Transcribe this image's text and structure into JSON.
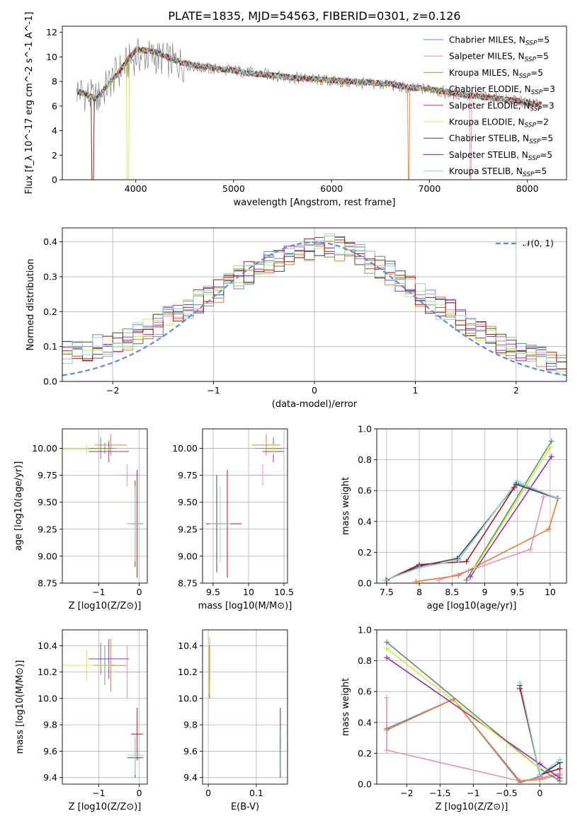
{
  "colors": {
    "chabrier_miles": "#5b8fd6",
    "salpeter_miles": "#e98cc0",
    "kroupa_miles": "#ee7c2c",
    "chabrier_elodie": "#5e8f6a",
    "salpeter_elodie": "#9a2fb8",
    "kroupa_elodie": "#ccef3f",
    "chabrier_stelib": "#444444",
    "salpeter_stelib": "#b01818",
    "kroupa_stelib": "#8fd6dc",
    "data": "#808080",
    "normal": "#5b8fd6"
  },
  "legend": [
    {
      "key": "chabrier_miles",
      "pre": "Chabrier MILES, N",
      "sub": "SSP",
      "post": "=5"
    },
    {
      "key": "salpeter_miles",
      "pre": "Salpeter MILES, N",
      "sub": "SSP",
      "post": "=5"
    },
    {
      "key": "kroupa_miles",
      "pre": "Kroupa MILES, N",
      "sub": "SSP",
      "post": "=5"
    },
    {
      "key": "chabrier_elodie",
      "pre": "Chabrier ELODIE, N",
      "sub": "SSP",
      "post": "=3"
    },
    {
      "key": "salpeter_elodie",
      "pre": "Salpeter ELODIE, N",
      "sub": "SSP",
      "post": "=3"
    },
    {
      "key": "kroupa_elodie",
      "pre": "Kroupa ELODIE, N",
      "sub": "SSP",
      "post": "=2"
    },
    {
      "key": "chabrier_stelib",
      "pre": "Chabrier STELIB, N",
      "sub": "SSP",
      "post": "=5"
    },
    {
      "key": "salpeter_stelib",
      "pre": "Salpeter STELIB, N",
      "sub": "SSP",
      "post": "=5"
    },
    {
      "key": "kroupa_stelib",
      "pre": "Kroupa STELIB, N",
      "sub": "SSP",
      "post": "=5"
    }
  ],
  "chart_data": [
    {
      "id": "spectrum",
      "type": "line",
      "title": "PLATE=1835, MJD=54563, FIBERID=0301, z=0.126",
      "xlabel": "wavelength [Angstrom, rest frame]",
      "ylabel": "Flux [f_λ 10^-17 erg cm^-2 s^-1 A^-1]",
      "xlim": [
        3250,
        8400
      ],
      "ylim": [
        0,
        12.5
      ],
      "xticks": [
        4000,
        5000,
        6000,
        7000,
        8000
      ],
      "yticks": [
        0,
        2,
        4,
        6,
        8,
        10,
        12
      ],
      "data_x": [
        3400,
        3600,
        3800,
        4000,
        4200,
        4400,
        4600,
        4800,
        5000,
        5200,
        5400,
        5600,
        5800,
        6000,
        6200,
        6400,
        6600,
        6800,
        7000,
        7200,
        7400,
        7600,
        7800,
        8000,
        8150
      ],
      "data_y": [
        7.3,
        6.5,
        8.6,
        10.1,
        10.0,
        9.6,
        9.2,
        9.0,
        8.9,
        8.7,
        8.5,
        8.3,
        8.2,
        8.0,
        7.9,
        7.8,
        7.7,
        7.4,
        7.4,
        7.0,
        6.9,
        6.7,
        6.5,
        6.3,
        6.0
      ],
      "model_y": [
        7.2,
        6.6,
        8.5,
        10.6,
        10.4,
        9.7,
        9.3,
        9.1,
        8.9,
        8.6,
        8.5,
        8.3,
        8.2,
        8.1,
        8.0,
        7.9,
        7.8,
        7.5,
        7.4,
        7.1,
        6.9,
        6.7,
        6.5,
        6.3,
        6.1
      ],
      "legend_position": "upper-right"
    },
    {
      "id": "residuals",
      "type": "line",
      "xlabel": "(data-model)/error",
      "ylabel": "Normed distribution",
      "xlim": [
        -2.5,
        2.5
      ],
      "ylim": [
        0,
        0.44
      ],
      "xticks": [
        -2,
        -1,
        0,
        1,
        2
      ],
      "yticks": [
        0.0,
        0.1,
        0.2,
        0.3,
        0.4
      ],
      "grid": true,
      "bin_width": 0.1,
      "hist_reference": [
        0.04,
        0.05,
        0.06,
        0.07,
        0.08,
        0.08,
        0.09,
        0.09,
        0.1,
        0.1,
        0.11,
        0.12,
        0.14,
        0.15,
        0.16,
        0.18,
        0.2,
        0.21,
        0.23,
        0.25,
        0.26,
        0.28,
        0.3,
        0.31,
        0.33,
        0.34,
        0.35,
        0.36,
        0.37,
        0.38,
        0.39,
        0.39,
        0.38,
        0.37,
        0.36,
        0.34,
        0.33,
        0.31,
        0.29,
        0.27,
        0.25,
        0.23,
        0.21,
        0.2,
        0.18,
        0.16,
        0.14,
        0.13,
        0.11,
        0.1,
        0.09,
        0.08,
        0.07,
        0.06,
        0.05,
        0.05,
        0.04,
        0.04,
        0.03,
        0.03
      ],
      "normal_label": "𝒩(0, 1)",
      "legend_position": "upper-right"
    },
    {
      "id": "age_vs_Z",
      "type": "scatter",
      "xlabel": "Z [log10(Z/Z⊙)]",
      "ylabel": "age [log10(age/yr)]",
      "xlim": [
        -1.9,
        0.2
      ],
      "ylim": [
        8.75,
        10.18
      ],
      "xticks": [
        -1,
        0
      ],
      "yticks": [
        8.75,
        9.0,
        9.25,
        9.5,
        9.75,
        10.0
      ],
      "grid": true,
      "points": [
        {
          "key": "chabrier_miles",
          "x": -0.85,
          "xerr": 0.3,
          "y": 10.0,
          "yerr": 0.05
        },
        {
          "key": "salpeter_miles",
          "x": -0.3,
          "xerr": 0.3,
          "y": 9.75,
          "yerr": 0.1
        },
        {
          "key": "kroupa_miles",
          "x": -0.7,
          "xerr": 0.4,
          "y": 10.03,
          "yerr": 0.1
        },
        {
          "key": "chabrier_elodie",
          "x": -0.95,
          "xerr": 0.3,
          "y": 10.0,
          "yerr": 0.1
        },
        {
          "key": "salpeter_elodie",
          "x": -0.75,
          "xerr": 0.5,
          "y": 9.97,
          "yerr": 0.1
        },
        {
          "key": "kroupa_elodie",
          "x": -1.3,
          "xerr": 0.6,
          "y": 9.99,
          "yerr": 0.05
        },
        {
          "key": "chabrier_stelib",
          "x": -0.1,
          "xerr": 0.2,
          "y": 9.3,
          "yerr": 0.4
        },
        {
          "key": "salpeter_stelib",
          "x": -0.05,
          "xerr": 0.15,
          "y": 9.3,
          "yerr": 0.5
        },
        {
          "key": "kroupa_stelib",
          "x": -0.1,
          "xerr": 0.2,
          "y": 9.3,
          "yerr": 0.35
        }
      ]
    },
    {
      "id": "age_vs_mass",
      "type": "scatter",
      "xlabel": "mass [log10(M/M⊙)]",
      "ylabel": "",
      "xlim": [
        9.35,
        10.55
      ],
      "ylim": [
        8.75,
        10.18
      ],
      "xticks": [
        9.5,
        10.0,
        10.5
      ],
      "yticks": [
        8.75,
        9.0,
        9.25,
        9.5,
        9.75,
        10.0
      ],
      "grid": true,
      "points": [
        {
          "key": "chabrier_miles",
          "x": 10.25,
          "xerr": 0.15,
          "y": 10.0,
          "yerr": 0.05
        },
        {
          "key": "salpeter_miles",
          "x": 10.2,
          "xerr": 0.2,
          "y": 9.75,
          "yerr": 0.1
        },
        {
          "key": "kroupa_miles",
          "x": 10.25,
          "xerr": 0.2,
          "y": 10.03,
          "yerr": 0.1
        },
        {
          "key": "chabrier_elodie",
          "x": 10.35,
          "xerr": 0.15,
          "y": 10.0,
          "yerr": 0.1
        },
        {
          "key": "salpeter_elodie",
          "x": 10.35,
          "xerr": 0.15,
          "y": 9.97,
          "yerr": 0.1
        },
        {
          "key": "kroupa_elodie",
          "x": 10.35,
          "xerr": 0.12,
          "y": 9.99,
          "yerr": 0.05
        },
        {
          "key": "chabrier_stelib",
          "x": 9.55,
          "xerr": 0.15,
          "y": 9.3,
          "yerr": 0.45
        },
        {
          "key": "salpeter_stelib",
          "x": 9.7,
          "xerr": 0.2,
          "y": 9.3,
          "yerr": 0.5
        },
        {
          "key": "kroupa_stelib",
          "x": 9.6,
          "xerr": 0.15,
          "y": 9.3,
          "yerr": 0.35
        }
      ]
    },
    {
      "id": "weight_vs_age",
      "type": "line",
      "xlabel": "age  [log10(age/yr)]",
      "ylabel": "mass weight",
      "xlim": [
        7.35,
        10.25
      ],
      "ylim": [
        0,
        1.0
      ],
      "xticks": [
        7.5,
        8.0,
        8.5,
        9.0,
        9.5,
        10.0
      ],
      "yticks": [
        0.0,
        0.2,
        0.4,
        0.6,
        0.8,
        1.0
      ],
      "grid": true,
      "series": [
        {
          "key": "chabrier_miles",
          "x": [
            7.48,
            8.0,
            8.6,
            9.48,
            10.12
          ],
          "y": [
            0.02,
            0.1,
            0.15,
            0.65,
            0.55
          ]
        },
        {
          "key": "salpeter_miles",
          "x": [
            8.3,
            8.75,
            9.7,
            9.9
          ],
          "y": [
            0.02,
            0.08,
            0.22,
            0.56
          ]
        },
        {
          "key": "kroupa_miles",
          "x": [
            7.95,
            8.6,
            9.98,
            10.12
          ],
          "y": [
            0.01,
            0.05,
            0.35,
            0.55
          ]
        },
        {
          "key": "chabrier_elodie",
          "x": [
            8.72,
            10.02
          ],
          "y": [
            0.02,
            0.92
          ]
        },
        {
          "key": "salpeter_elodie",
          "x": [
            8.78,
            10.02
          ],
          "y": [
            0.04,
            0.82
          ]
        },
        {
          "key": "kroupa_elodie",
          "x": [
            8.85,
            10.0
          ],
          "y": [
            0.1,
            0.88
          ]
        },
        {
          "key": "chabrier_stelib",
          "x": [
            7.5,
            8.0,
            8.58,
            9.48,
            10.1
          ],
          "y": [
            0.02,
            0.11,
            0.16,
            0.64,
            0.55
          ]
        },
        {
          "key": "salpeter_stelib",
          "x": [
            7.5,
            8.0,
            8.72,
            9.45
          ],
          "y": [
            0.02,
            0.12,
            0.14,
            0.62
          ]
        },
        {
          "key": "kroupa_stelib",
          "x": [
            7.48,
            8.0,
            8.6,
            9.5,
            10.1
          ],
          "y": [
            0.02,
            0.1,
            0.15,
            0.66,
            0.55
          ]
        }
      ]
    },
    {
      "id": "mass_vs_Z",
      "type": "scatter",
      "xlabel": "Z [log10(Z/Z⊙)]",
      "ylabel": "mass [log10(M/M⊙)]",
      "xlim": [
        -1.9,
        0.2
      ],
      "ylim": [
        9.35,
        10.52
      ],
      "xticks": [
        -1,
        0
      ],
      "yticks": [
        9.4,
        9.6,
        9.8,
        10.0,
        10.2,
        10.4
      ],
      "grid": true,
      "points": [
        {
          "key": "chabrier_miles",
          "x": -0.85,
          "xerr": 0.3,
          "y": 10.25,
          "yerr": 0.15
        },
        {
          "key": "salpeter_miles",
          "x": -0.3,
          "xerr": 0.3,
          "y": 10.2,
          "yerr": 0.2
        },
        {
          "key": "kroupa_miles",
          "x": -0.7,
          "xerr": 0.4,
          "y": 10.25,
          "yerr": 0.2
        },
        {
          "key": "chabrier_elodie",
          "x": -0.95,
          "xerr": 0.3,
          "y": 10.3,
          "yerr": 0.12
        },
        {
          "key": "salpeter_elodie",
          "x": -0.75,
          "xerr": 0.5,
          "y": 10.3,
          "yerr": 0.15
        },
        {
          "key": "kroupa_elodie",
          "x": -1.3,
          "xerr": 0.6,
          "y": 10.25,
          "yerr": 0.12
        },
        {
          "key": "chabrier_stelib",
          "x": -0.1,
          "xerr": 0.2,
          "y": 9.55,
          "yerr": 0.15
        },
        {
          "key": "salpeter_stelib",
          "x": -0.05,
          "xerr": 0.15,
          "y": 9.73,
          "yerr": 0.2
        },
        {
          "key": "kroupa_stelib",
          "x": -0.1,
          "xerr": 0.2,
          "y": 9.57,
          "yerr": 0.15
        }
      ]
    },
    {
      "id": "mass_vs_ebv",
      "type": "scatter",
      "xlabel": "E(B-V)",
      "ylabel": "",
      "xlim": [
        -0.012,
        0.165
      ],
      "ylim": [
        9.35,
        10.52
      ],
      "xticks": [
        0.0,
        0.1
      ],
      "yticks": [
        9.4,
        9.6,
        9.8,
        10.0,
        10.2,
        10.4
      ],
      "grid": true,
      "points": [
        {
          "key": "chabrier_miles",
          "x": 0.003,
          "xerr": 0,
          "y": 10.25,
          "yerr": 0.15
        },
        {
          "key": "salpeter_miles",
          "x": 0.003,
          "xerr": 0,
          "y": 10.2,
          "yerr": 0.2
        },
        {
          "key": "kroupa_miles",
          "x": 0.002,
          "xerr": 0,
          "y": 10.2,
          "yerr": 0.2
        },
        {
          "key": "chabrier_elodie",
          "x": 0.003,
          "xerr": 0,
          "y": 10.3,
          "yerr": 0.12
        },
        {
          "key": "salpeter_elodie",
          "x": 0.003,
          "xerr": 0,
          "y": 10.3,
          "yerr": 0.15
        },
        {
          "key": "kroupa_elodie",
          "x": 0.003,
          "xerr": 0,
          "y": 10.25,
          "yerr": 0.22
        },
        {
          "key": "chabrier_stelib",
          "x": 0.15,
          "xerr": 0,
          "y": 9.55,
          "yerr": 0.15
        },
        {
          "key": "salpeter_stelib",
          "x": 0.15,
          "xerr": 0,
          "y": 9.78,
          "yerr": 0.15
        },
        {
          "key": "kroupa_stelib",
          "x": 0.149,
          "xerr": 0,
          "y": 9.6,
          "yerr": 0.15
        }
      ]
    },
    {
      "id": "weight_vs_Z",
      "type": "line",
      "xlabel": "Z [log10(Z/Z⊙)]",
      "ylabel": "mass weight",
      "xlim": [
        -2.45,
        0.4
      ],
      "ylim": [
        0,
        1.0
      ],
      "xticks": [
        -2.0,
        -1.5,
        -1.0,
        -0.5,
        0.0
      ],
      "yticks": [
        0.0,
        0.2,
        0.4,
        0.6,
        0.8,
        1.0
      ],
      "grid": true,
      "series": [
        {
          "key": "chabrier_miles",
          "x": [
            -2.3,
            -1.3,
            -0.3,
            0.0,
            0.3
          ],
          "y": [
            0.36,
            0.55,
            0.01,
            0.05,
            0.14
          ]
        },
        {
          "key": "salpeter_miles",
          "x": [
            -2.3,
            -2.3,
            -0.3,
            0.0,
            0.3,
            0.3
          ],
          "y": [
            0.56,
            0.22,
            0.02,
            0.04,
            0.07,
            0.14
          ]
        },
        {
          "key": "kroupa_miles",
          "x": [
            -2.3,
            -1.3,
            -0.3,
            0.0,
            0.3
          ],
          "y": [
            0.35,
            0.55,
            0.02,
            0.03,
            0.06
          ]
        },
        {
          "key": "chabrier_elodie",
          "x": [
            -2.3,
            0.0,
            0.3
          ],
          "y": [
            0.92,
            0.1,
            0.02
          ]
        },
        {
          "key": "salpeter_elodie",
          "x": [
            -2.3,
            0.0,
            0.3
          ],
          "y": [
            0.82,
            0.13,
            0.04
          ]
        },
        {
          "key": "kroupa_elodie",
          "x": [
            -2.3,
            0.0
          ],
          "y": [
            0.88,
            0.1
          ]
        },
        {
          "key": "chabrier_stelib",
          "x": [
            -0.3,
            0.0,
            0.3
          ],
          "y": [
            0.64,
            0.06,
            0.14
          ]
        },
        {
          "key": "salpeter_stelib",
          "x": [
            -0.3,
            0.0,
            0.3
          ],
          "y": [
            0.62,
            0.06,
            0.1
          ]
        },
        {
          "key": "kroupa_stelib",
          "x": [
            -0.3,
            0.0,
            0.3
          ],
          "y": [
            0.66,
            0.06,
            0.16
          ]
        }
      ]
    }
  ]
}
